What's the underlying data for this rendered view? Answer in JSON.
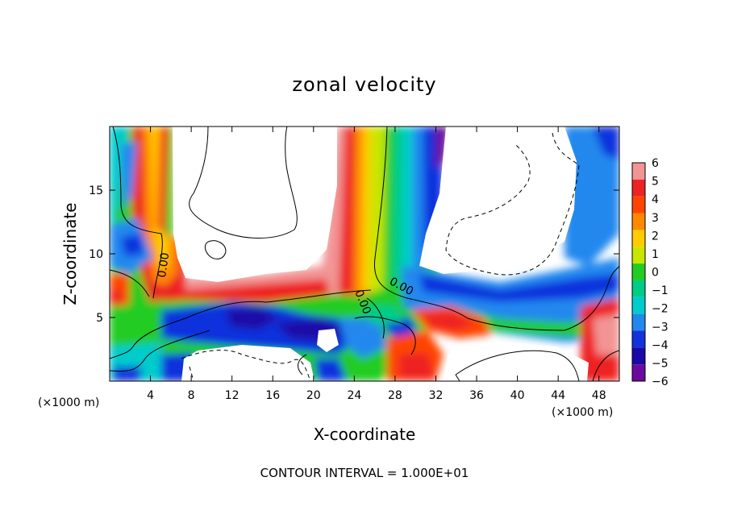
{
  "chart_data": {
    "type": "heatmap",
    "title": "zonal velocity",
    "xlabel": "X-coordinate",
    "ylabel": "Z-coordinate",
    "x_unit_left": "(×1000 m)",
    "x_unit_right": "(×1000 m)",
    "xlim": [
      0,
      50
    ],
    "ylim": [
      0,
      20
    ],
    "x_ticks": [
      4,
      8,
      12,
      16,
      20,
      24,
      28,
      32,
      36,
      40,
      44,
      48
    ],
    "y_ticks": [
      5,
      10,
      15
    ],
    "colorbar": {
      "levels": [
        6,
        5,
        4,
        3,
        2,
        1,
        0,
        -1,
        -2,
        -3,
        -4,
        -5,
        -6
      ],
      "labels": [
        "6",
        "5",
        "4",
        "3",
        "2",
        "1",
        "0",
        "−1",
        "−2",
        "−3",
        "−4",
        "−5",
        "−6"
      ],
      "colors": [
        "#f29494",
        "#ee2222",
        "#ff4400",
        "#ff8800",
        "#ffcc00",
        "#c8e600",
        "#22cc22",
        "#00cc88",
        "#00cccc",
        "#2288ee",
        "#1133dd",
        "#1a08a8",
        "#6a0a9e"
      ]
    },
    "contour_labels": [
      "0.00",
      "0.00",
      "0.00"
    ],
    "footer": "CONTOUR INTERVAL = 1.000E+01",
    "grid": false
  }
}
